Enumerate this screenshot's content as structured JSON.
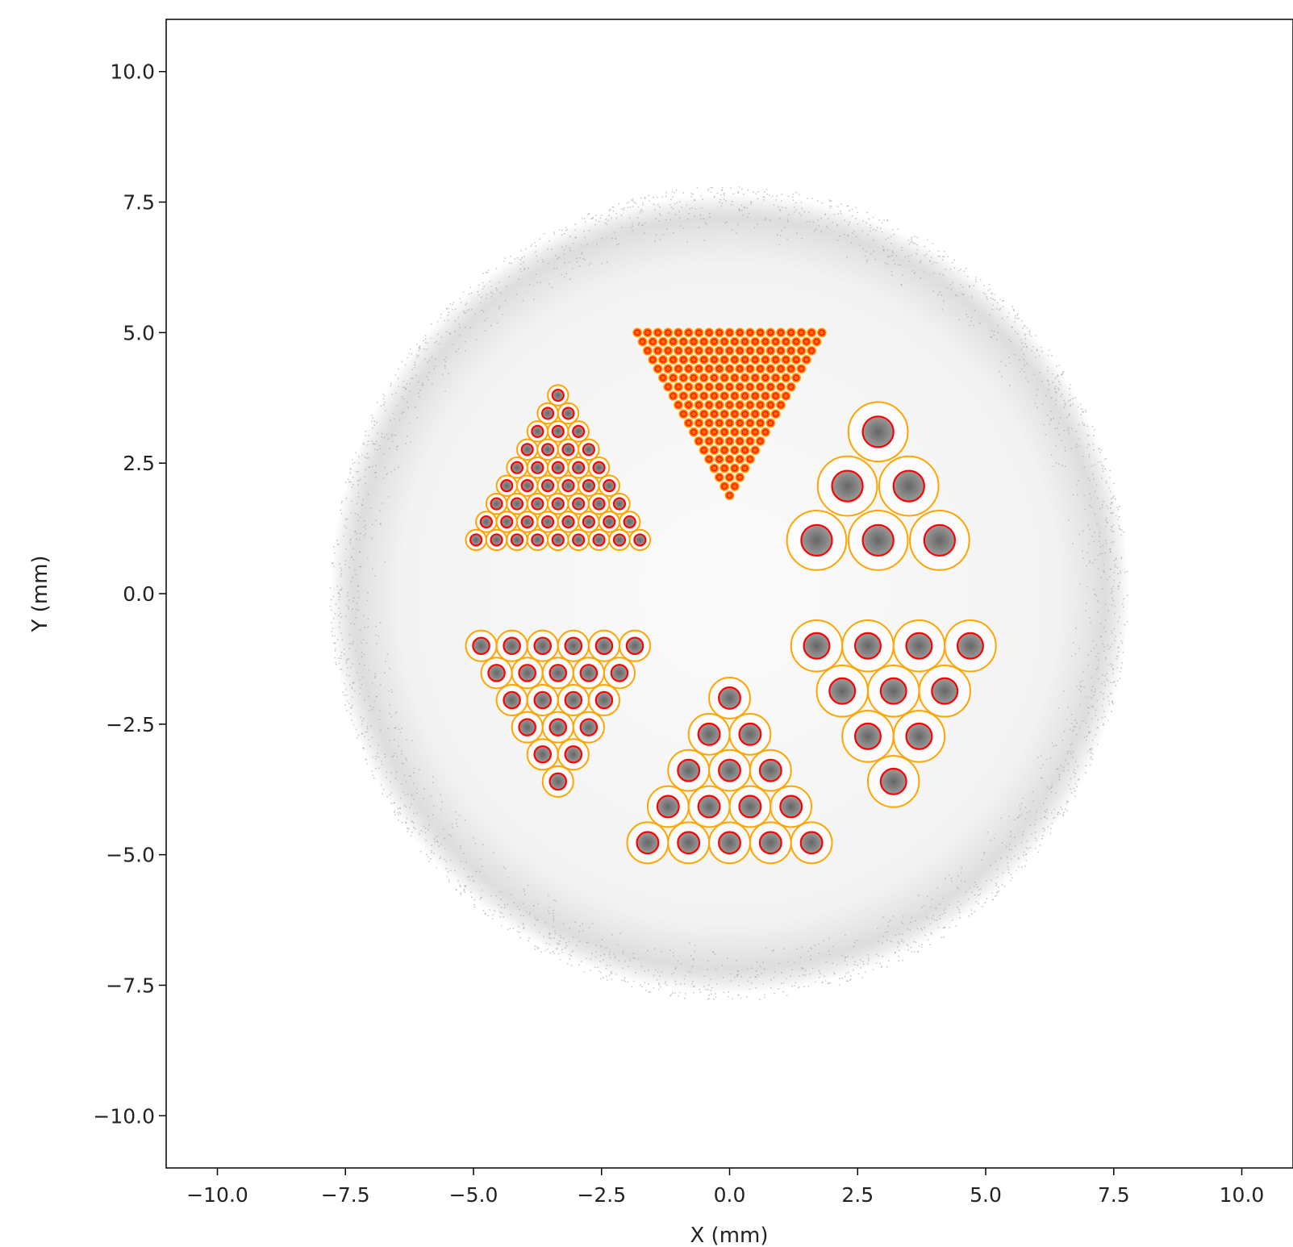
{
  "chart_data": {
    "type": "scatter",
    "title": "",
    "xlabel": "X (mm)",
    "ylabel": "Y (mm)",
    "xlim": [
      -11,
      11
    ],
    "ylim": [
      -11,
      11
    ],
    "x_ticks": [
      -10.0,
      -7.5,
      -5.0,
      -2.5,
      0.0,
      2.5,
      5.0,
      7.5,
      10.0
    ],
    "y_ticks": [
      -10.0,
      -7.5,
      -5.0,
      -2.5,
      0.0,
      2.5,
      5.0,
      7.5,
      10.0
    ],
    "x_tick_labels": [
      "−10.0",
      "−7.5",
      "−5.0",
      "−2.5",
      "0.0",
      "2.5",
      "5.0",
      "7.5",
      "10.0"
    ],
    "y_tick_labels": [
      "−10.0",
      "−7.5",
      "−5.0",
      "−2.5",
      "0.0",
      "2.5",
      "5.0",
      "7.5",
      "10.0"
    ],
    "grid": false,
    "background_disk": {
      "center": [
        0.0,
        0.0
      ],
      "radius": 7.8,
      "color": "#9a9a9a"
    },
    "colors": {
      "outer_ring": "#ffa500",
      "inner_ring": "#ff0000",
      "core_fill": "#8a8a8a",
      "dense_fill": "#ff6a00"
    },
    "cell_groups": [
      {
        "shape": "triangle-down",
        "rows": [
          [
            -1.8,
            1.8,
            5.0,
            19
          ],
          [
            0.0,
            0.0,
            2.0,
            1
          ]
        ],
        "pitch": 0.2,
        "outer_r": 0.085,
        "inner_r": 0.05,
        "dense": true
      },
      {
        "shape": "triangle-up",
        "apex": [
          -3.35,
          3.8
        ],
        "n": 9,
        "pitch": 0.4,
        "outer_r": 0.2,
        "inner_r": 0.11
      },
      {
        "shape": "triangle-up",
        "apex": [
          2.9,
          3.1
        ],
        "n": 3,
        "pitch": 1.2,
        "outer_r": 0.58,
        "inner_r": 0.3
      },
      {
        "shape": "triangle-down",
        "top_left": [
          -4.85,
          -1.0
        ],
        "n": 6,
        "pitch": 0.6,
        "outer_r": 0.3,
        "inner_r": 0.16
      },
      {
        "shape": "triangle-down",
        "top_left": [
          1.7,
          -1.0
        ],
        "n": 4,
        "pitch": 1.0,
        "outer_r": 0.5,
        "inner_r": 0.25
      },
      {
        "shape": "triangle-up",
        "apex": [
          0.0,
          -2.0
        ],
        "n": 5,
        "pitch": 0.8,
        "outer_r": 0.4,
        "inner_r": 0.21
      }
    ]
  }
}
